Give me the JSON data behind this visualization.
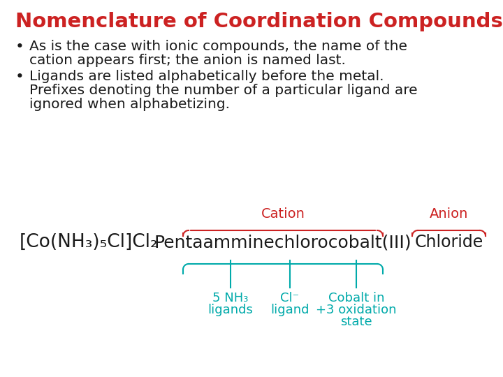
{
  "title": "Nomenclature of Coordination Compounds",
  "title_color": "#CC0000",
  "title_fontsize": 21,
  "bullet1_line1": "As is the case with ionic compounds, the name of the",
  "bullet1_line2": "cation appears first; the anion is named last.",
  "bullet2_line1": "Ligands are listed alphabetically before the metal.",
  "bullet2_line2": "Prefixes denoting the number of a particular ligand are",
  "bullet2_line3": "ignored when alphabetizing.",
  "formula": "[Co(NH₃)₅Cl]Cl₂",
  "cation_label": "Cation",
  "anion_label": "Anion",
  "compound_name": "Pentaamminechlorocobalt(III)",
  "anion_name": "Chloride",
  "sub1_line1": "5 NH₃",
  "sub1_line2": "ligands",
  "sub2_line1": "Cl⁻",
  "sub2_line2": "ligand",
  "sub3_line1": "Cobalt in",
  "sub3_line2": "+3 oxidation",
  "sub3_line3": "state",
  "red_color": "#CC2222",
  "teal_color": "#00AAAA",
  "black_color": "#1a1a1a",
  "bg_color": "#FFFFFF",
  "text_fontsize": 14.5,
  "label_fontsize": 13,
  "formula_fontsize": 19,
  "compound_fontsize": 18
}
